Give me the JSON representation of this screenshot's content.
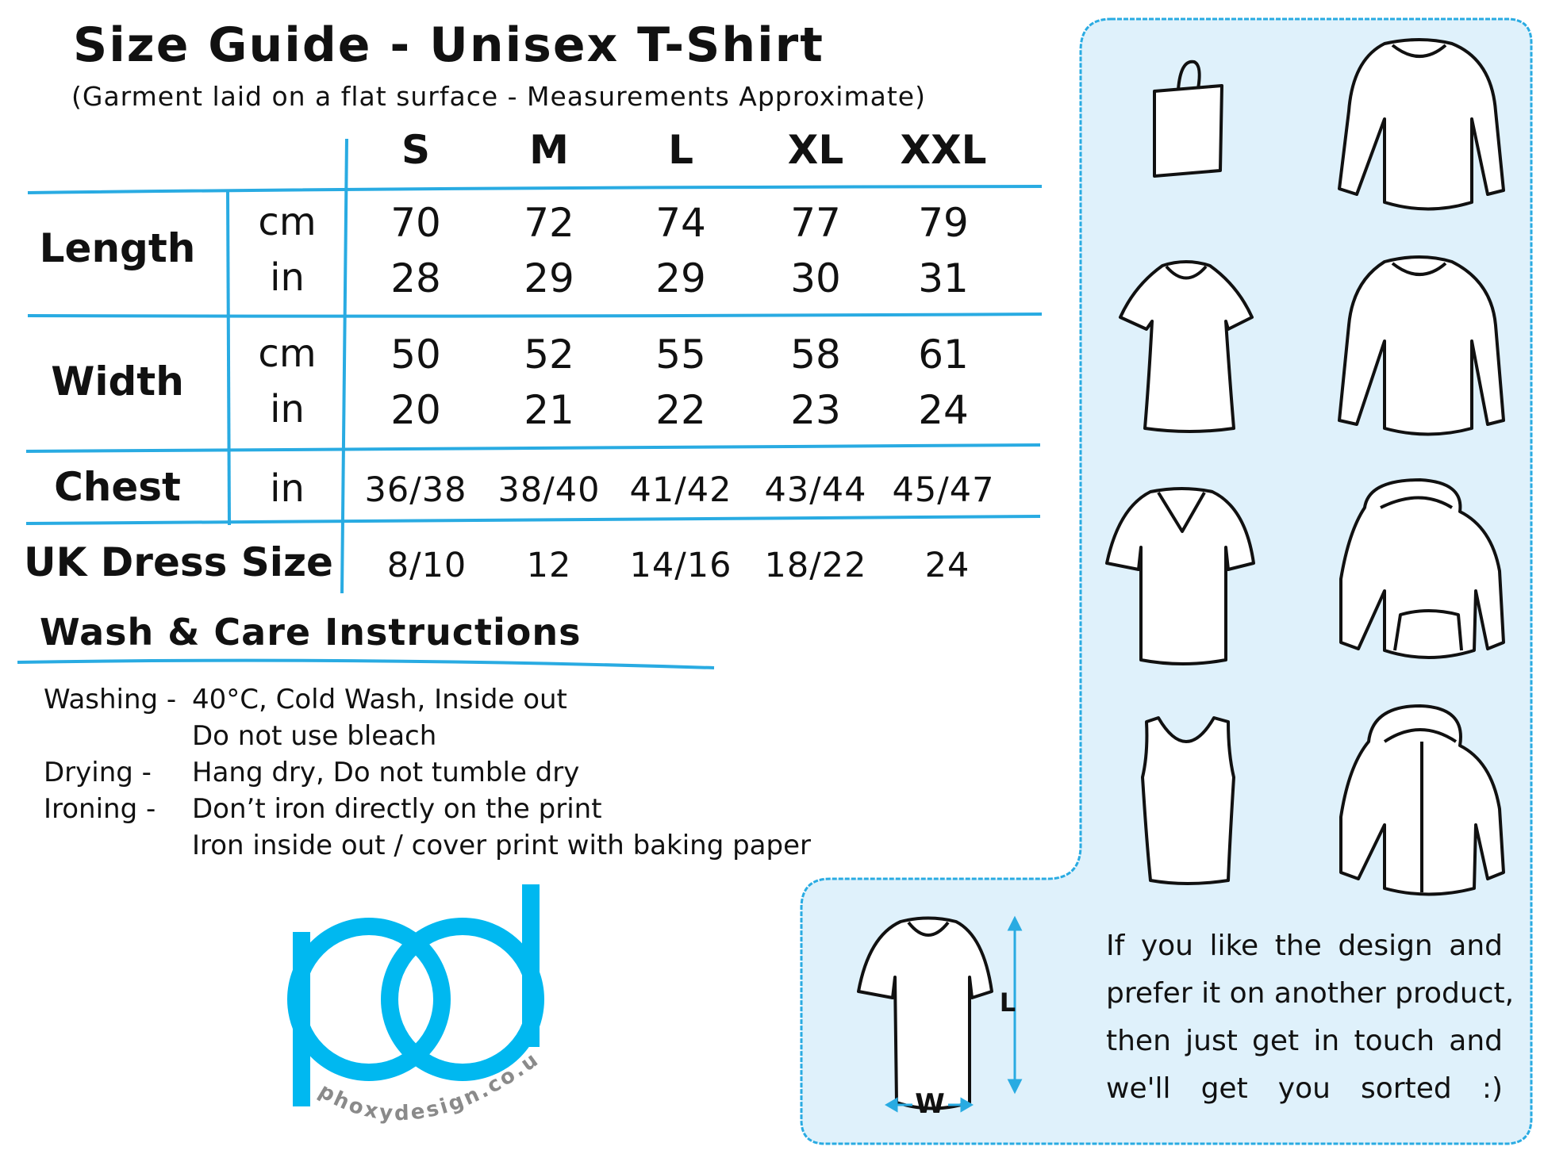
{
  "title": "Size Guide - Unisex T-Shirt",
  "subtitle": "(Garment laid on a flat surface - Measurements Approximate)",
  "table": {
    "sizes": [
      "S",
      "M",
      "L",
      "XL",
      "XXL"
    ],
    "rows": [
      {
        "label": "Length",
        "units": [
          {
            "unit": "cm",
            "values": [
              "70",
              "72",
              "74",
              "77",
              "79"
            ]
          },
          {
            "unit": "in",
            "values": [
              "28",
              "29",
              "29",
              "30",
              "31"
            ]
          }
        ]
      },
      {
        "label": "Width",
        "units": [
          {
            "unit": "cm",
            "values": [
              "50",
              "52",
              "55",
              "58",
              "61"
            ]
          },
          {
            "unit": "in",
            "values": [
              "20",
              "21",
              "22",
              "23",
              "24"
            ]
          }
        ]
      },
      {
        "label": "Chest",
        "units": [
          {
            "unit": "in",
            "values": [
              "36/38",
              "38/40",
              "41/42",
              "43/44",
              "45/47"
            ]
          }
        ]
      }
    ],
    "uk_dress": {
      "label": "UK Dress Size",
      "values": [
        "8/10",
        "12",
        "14/16",
        "18/22",
        "24"
      ]
    }
  },
  "care": {
    "heading": "Wash & Care Instructions",
    "lines": [
      {
        "label": "Washing -",
        "text": "40°C, Cold Wash, Inside out"
      },
      {
        "label": "",
        "text": "Do not use bleach"
      },
      {
        "label": "Drying -",
        "text": "Hang dry, Do not tumble dry"
      },
      {
        "label": "Ironing -",
        "text": "Don’t iron directly on the print"
      },
      {
        "label": "",
        "text": "Iron inside out / cover print with baking paper"
      }
    ]
  },
  "logo": {
    "letters": "pd",
    "url_text": "phoxydesign.co.uk"
  },
  "panel": {
    "icons": [
      "tote-bag-icon",
      "long-sleeve-top-icon",
      "womens-tshirt-icon",
      "sweatshirt-icon",
      "vneck-tshirt-icon",
      "hoodie-icon",
      "tank-top-icon",
      "zip-hoodie-icon"
    ],
    "diagram": {
      "length_label": "L",
      "width_label": "W"
    },
    "note_lines": [
      "If you like the design and",
      "prefer it on another product,",
      "then just get in touch and",
      "we'll get you sorted :)"
    ]
  },
  "colors": {
    "accent": "#29abe2",
    "logo": "#00b8f0",
    "panel_bg": "#dff1fb",
    "text": "#111111",
    "logo_text": "#8a8a8a"
  }
}
